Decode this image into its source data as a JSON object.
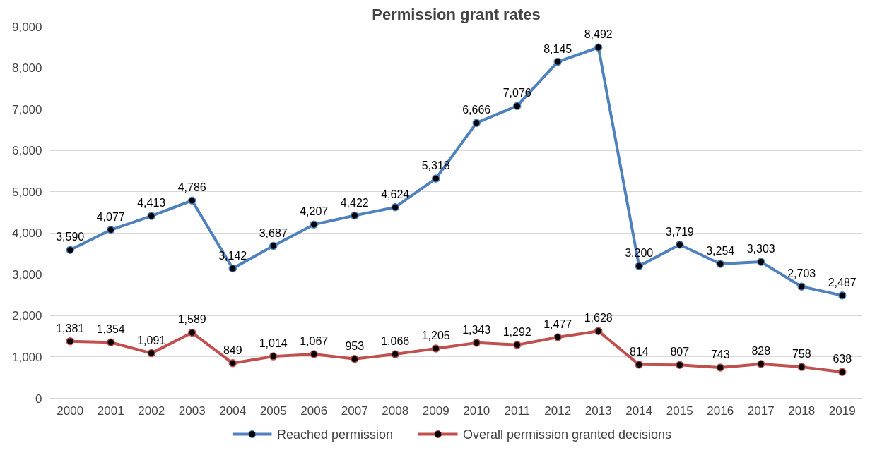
{
  "chart_data": {
    "type": "line",
    "title": "Permission grant rates",
    "categories": [
      "2000",
      "2001",
      "2002",
      "2003",
      "2004",
      "2005",
      "2006",
      "2007",
      "2008",
      "2009",
      "2010",
      "2011",
      "2012",
      "2013",
      "2014",
      "2015",
      "2016",
      "2017",
      "2018",
      "2019"
    ],
    "series": [
      {
        "name": "Reached permission",
        "color": "#4f81bd",
        "values": [
          3590,
          4077,
          4413,
          4786,
          3142,
          3687,
          4207,
          4422,
          4624,
          5318,
          6666,
          7076,
          8145,
          8492,
          3200,
          3719,
          3254,
          3303,
          2703,
          2487
        ],
        "value_labels": [
          "3,590",
          "4,077",
          "4,413",
          "4,786",
          "3,142",
          "3,687",
          "4,207",
          "4,422",
          "4,624",
          "5,318",
          "6,666",
          "7,076",
          "8,145",
          "8,492",
          "3,200",
          "3,719",
          "3,254",
          "3,303",
          "2,703",
          "2,487"
        ]
      },
      {
        "name": "Overall permission granted decisions",
        "color": "#c0504d",
        "values": [
          1381,
          1354,
          1091,
          1589,
          849,
          1014,
          1067,
          953,
          1066,
          1205,
          1343,
          1292,
          1477,
          1628,
          814,
          807,
          743,
          828,
          758,
          638
        ],
        "value_labels": [
          "1,381",
          "1,354",
          "1,091",
          "1,589",
          "849",
          "1,014",
          "1,067",
          "953",
          "1,066",
          "1,205",
          "1,343",
          "1,292",
          "1,477",
          "1,628",
          "814",
          "807",
          "743",
          "828",
          "758",
          "638"
        ]
      }
    ],
    "ylim": [
      0,
      9000
    ],
    "yticks": [
      0,
      {
        "value": 1000,
        "label": "1,000"
      },
      {
        "value": 2000,
        "label": "2,000"
      },
      {
        "value": 3000,
        "label": "3,000"
      },
      {
        "value": 4000,
        "label": "4,000"
      },
      {
        "value": 5000,
        "label": "5,000"
      },
      {
        "value": 6000,
        "label": "6,000"
      },
      {
        "value": 7000,
        "label": "7,000"
      },
      {
        "value": 8000,
        "label": "8,000"
      },
      {
        "value": 9000,
        "label": "9,000"
      }
    ],
    "grid": "y",
    "legend": "bottom",
    "marker": "circle",
    "line_style": "solid"
  }
}
